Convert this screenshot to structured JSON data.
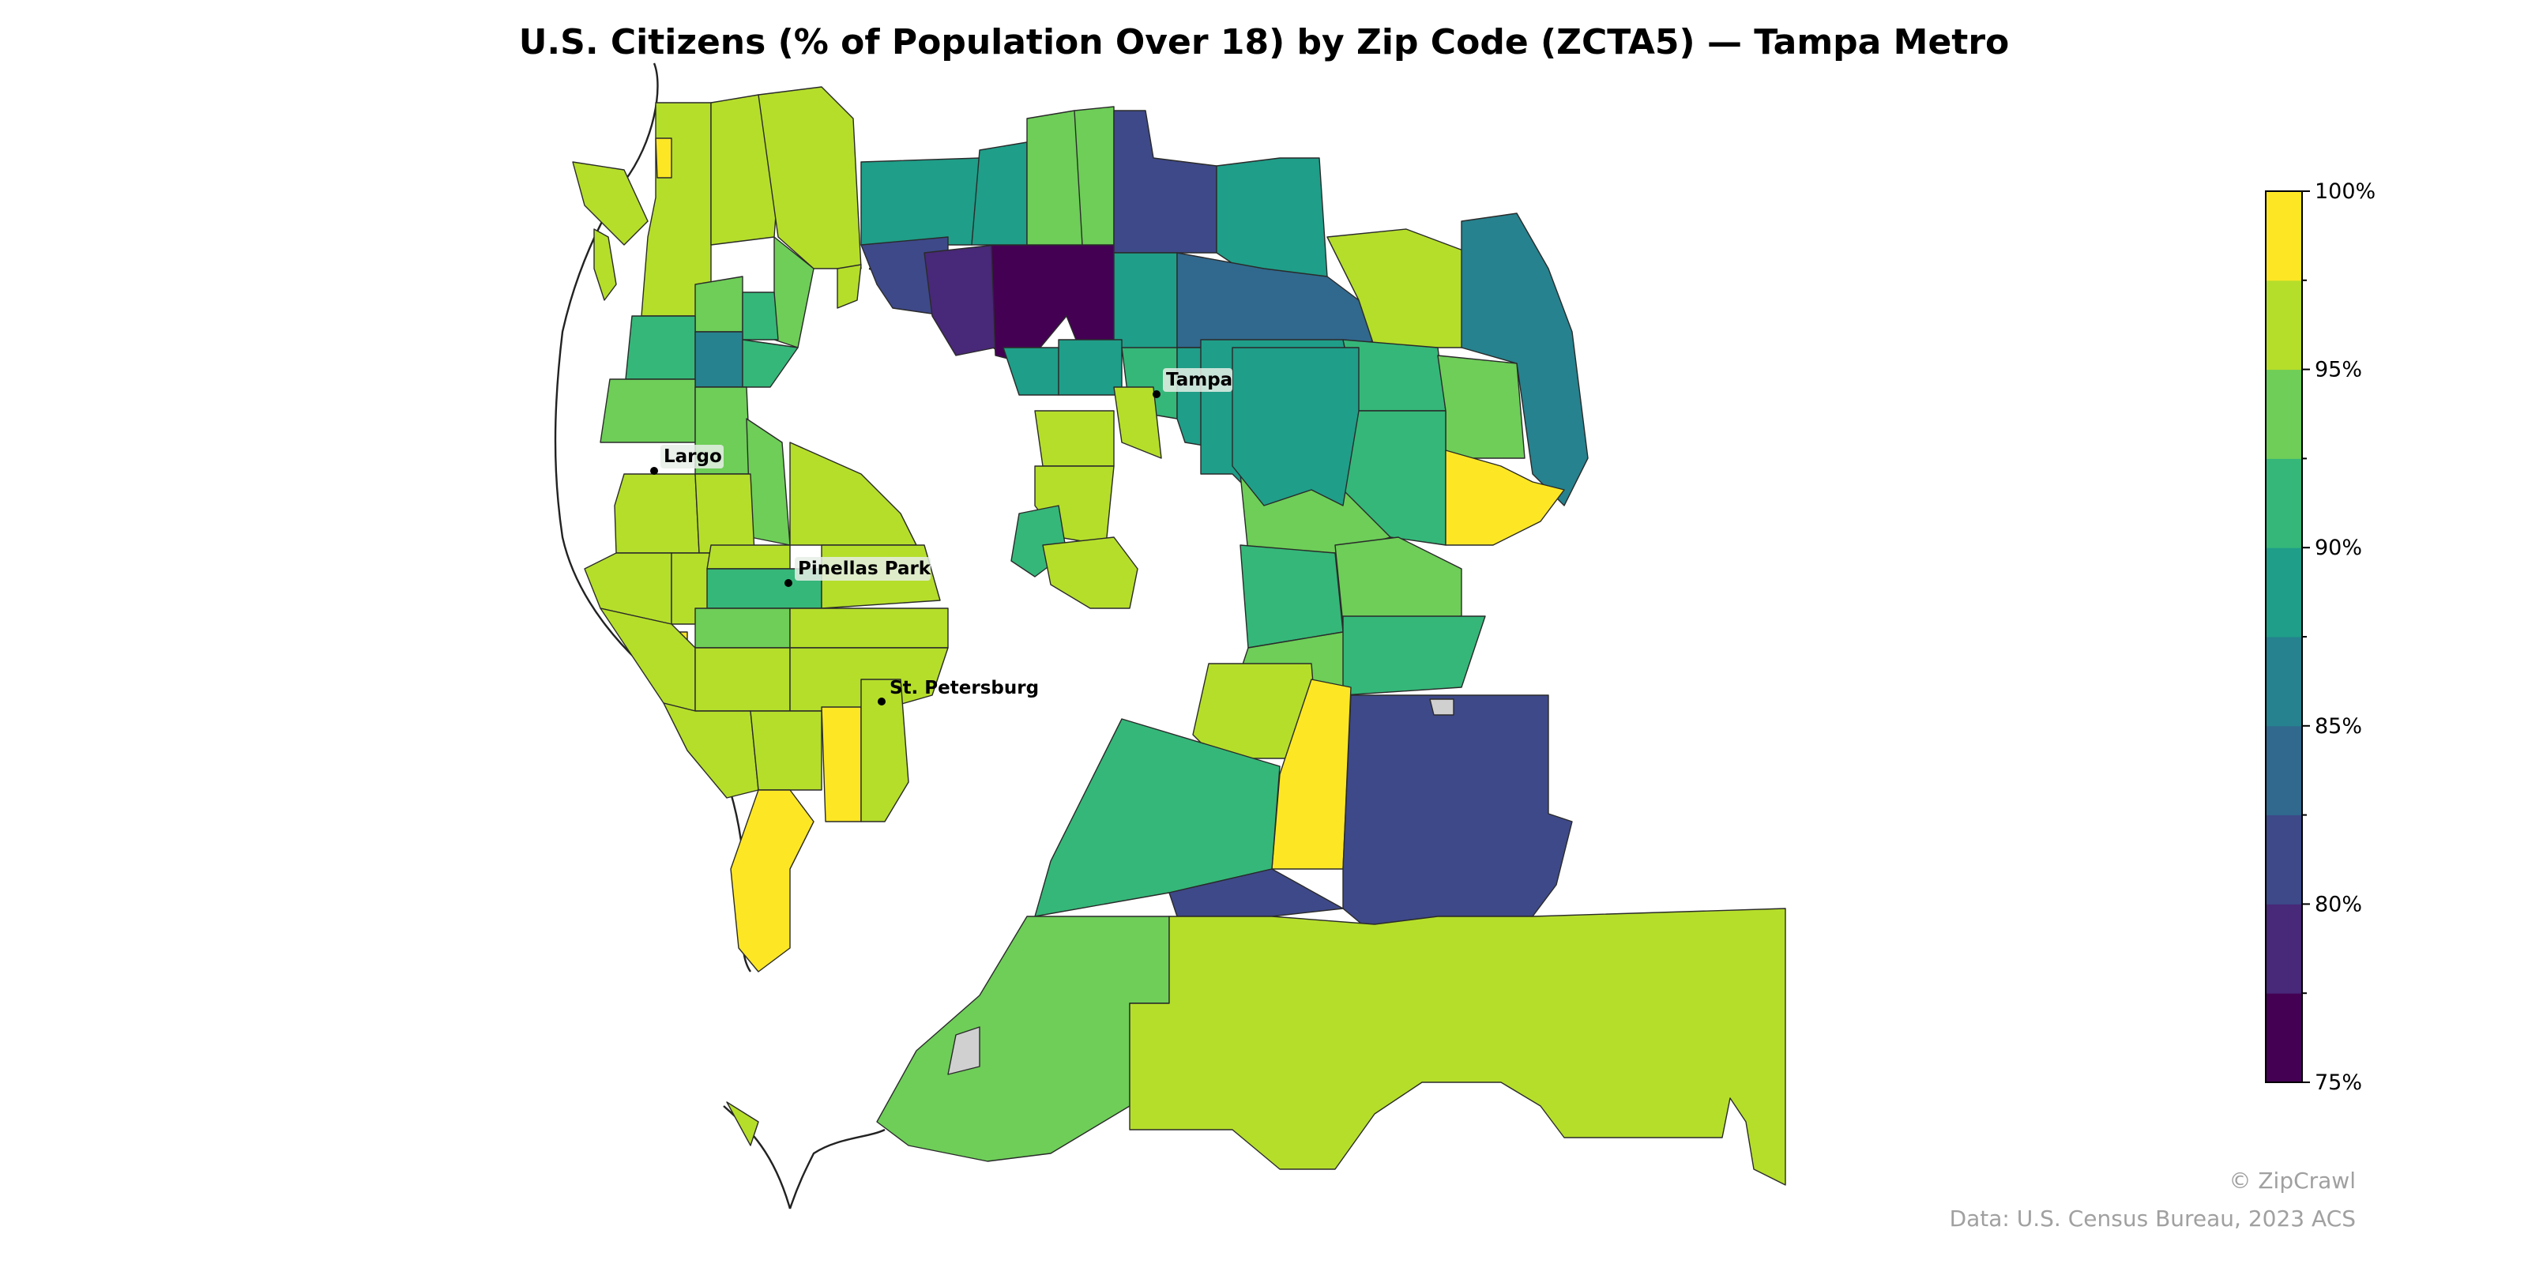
{
  "title": "U.S. Citizens (% of Population Over 18) by Zip Code (ZCTA5) — Tampa Metro",
  "colors": {
    "c75": "#440154",
    "c77": "#482878",
    "c80": "#3e4989",
    "c82": "#31688e",
    "c85": "#26828e",
    "c87": "#1f9e89",
    "c90": "#35b779",
    "c92": "#6ece58",
    "c95": "#b5de2b",
    "c97": "#fde725",
    "nodata": "#d0d0d0",
    "coast": "#222222"
  },
  "cities": [
    {
      "name": "Tampa"
    },
    {
      "name": "Largo"
    },
    {
      "name": "Pinellas Park"
    },
    {
      "name": "St. Petersburg"
    }
  ],
  "colorbar": {
    "min": 75,
    "max": 100,
    "step": 2.5,
    "ticks": [
      "75%",
      "80%",
      "85%",
      "90%",
      "95%",
      "100%"
    ]
  },
  "credit": "© ZipCrawl",
  "source": "Data: U.S. Census Bureau, 2023 ACS"
}
